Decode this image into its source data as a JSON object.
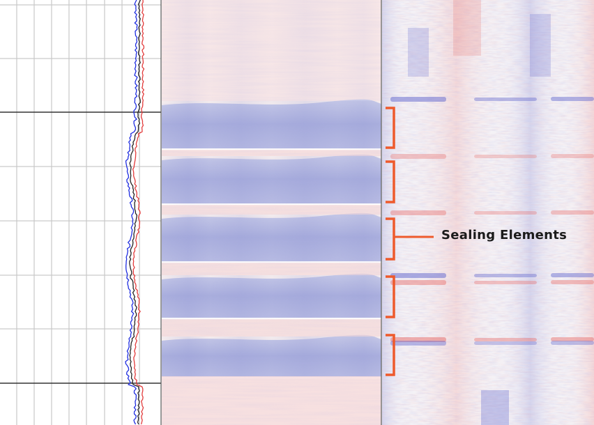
{
  "annotation": {
    "label": "Sealing Elements",
    "bracket_color": "#ee5a2c",
    "sealing_element_count": 5
  },
  "log_track": {
    "curve_colors": [
      "#1f2de0",
      "#222222",
      "#e23b3b"
    ]
  },
  "image_tracks": {
    "positive_color": "#e8746f",
    "negative_color": "#6f6fc4"
  }
}
